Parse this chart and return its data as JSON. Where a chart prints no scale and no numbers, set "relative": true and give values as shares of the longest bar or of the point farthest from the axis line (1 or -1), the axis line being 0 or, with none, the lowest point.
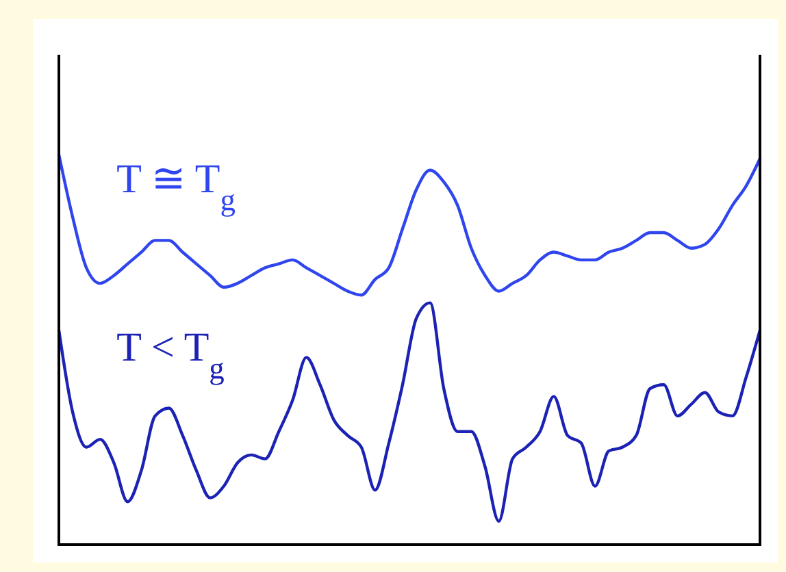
{
  "chart_data": {
    "type": "line",
    "relative": true,
    "categories": [
      null,
      null,
      null,
      null,
      null,
      null,
      null,
      null,
      null,
      null,
      null,
      null,
      null,
      null,
      null,
      null,
      null,
      null,
      null,
      null,
      null,
      null,
      null,
      null,
      null,
      null,
      null,
      null,
      null,
      null,
      null,
      null,
      null,
      null,
      null,
      null,
      null,
      null,
      null,
      null,
      null,
      null,
      null,
      null,
      null,
      null,
      null,
      null,
      null,
      null,
      null,
      null
    ],
    "series": [
      {
        "name": "T ≅ T$_{g}$",
        "color": "#2f45ee",
        "values": [
          1.0,
          0.84,
          0.71,
          0.67,
          0.69,
          0.72,
          0.75,
          0.78,
          0.78,
          0.75,
          0.72,
          0.69,
          0.66,
          0.67,
          0.69,
          0.71,
          0.72,
          0.73,
          0.71,
          0.69,
          0.67,
          0.65,
          0.64,
          0.68,
          0.71,
          0.81,
          0.91,
          0.96,
          0.93,
          0.87,
          0.76,
          0.69,
          0.65,
          0.67,
          0.69,
          0.73,
          0.75,
          0.74,
          0.73,
          0.73,
          0.75,
          0.76,
          0.78,
          0.8,
          0.8,
          0.78,
          0.76,
          0.77,
          0.81,
          0.87,
          0.92,
          0.99
        ]
      },
      {
        "name": "T < T$_{g}$",
        "color": "#1c22b4",
        "values": [
          0.55,
          0.34,
          0.25,
          0.27,
          0.21,
          0.11,
          0.19,
          0.33,
          0.35,
          0.28,
          0.19,
          0.12,
          0.15,
          0.21,
          0.23,
          0.22,
          0.29,
          0.37,
          0.48,
          0.41,
          0.32,
          0.28,
          0.25,
          0.14,
          0.26,
          0.41,
          0.58,
          0.62,
          0.4,
          0.29,
          0.29,
          0.2,
          0.06,
          0.22,
          0.25,
          0.29,
          0.38,
          0.28,
          0.26,
          0.15,
          0.24,
          0.25,
          0.28,
          0.4,
          0.41,
          0.33,
          0.36,
          0.39,
          0.34,
          0.33,
          0.43,
          0.55
        ]
      }
    ]
  }
}
